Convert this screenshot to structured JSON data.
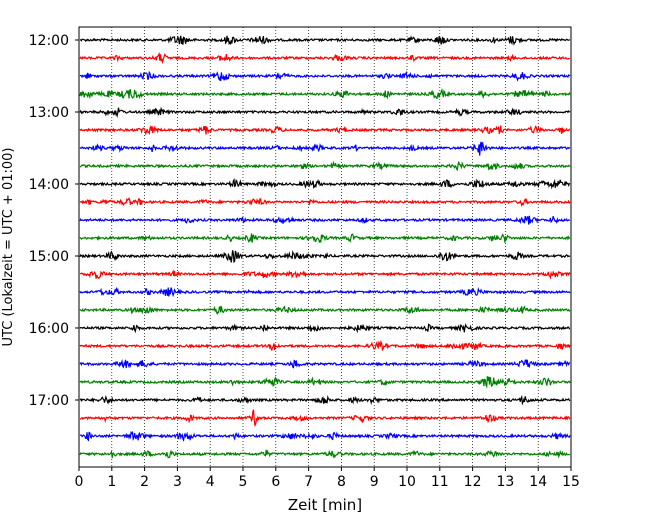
{
  "chart_data": {
    "type": "line",
    "title": "",
    "xlabel": "Zeit  [min]",
    "ylabel": "UTC (Lokalzeit = UTC + 01:00)",
    "xlim": [
      0,
      15
    ],
    "x_ticks": [
      0,
      1,
      2,
      3,
      4,
      5,
      6,
      7,
      8,
      9,
      10,
      11,
      12,
      13,
      14,
      15
    ],
    "x_tick_labels": [
      "0",
      "1",
      "2",
      "3",
      "4",
      "5",
      "6",
      "7",
      "8",
      "9",
      "10",
      "11",
      "12",
      "13",
      "14",
      "15"
    ],
    "y_tick_labels": [
      "12:00",
      "13:00",
      "14:00",
      "15:00",
      "16:00",
      "17:00"
    ],
    "grid": "vertical dotted",
    "trace_colors": [
      "#000000",
      "#ff0000",
      "#0000ff",
      "#008000"
    ],
    "series": [
      {
        "start": "12:00"
      },
      {
        "start": "12:15"
      },
      {
        "start": "12:30"
      },
      {
        "start": "12:45"
      },
      {
        "start": "13:00"
      },
      {
        "start": "13:15"
      },
      {
        "start": "13:30"
      },
      {
        "start": "13:45"
      },
      {
        "start": "14:00"
      },
      {
        "start": "14:15"
      },
      {
        "start": "14:30"
      },
      {
        "start": "14:45"
      },
      {
        "start": "15:00"
      },
      {
        "start": "15:15"
      },
      {
        "start": "15:30"
      },
      {
        "start": "15:45"
      },
      {
        "start": "16:00"
      },
      {
        "start": "16:15"
      },
      {
        "start": "16:30"
      },
      {
        "start": "16:45"
      },
      {
        "start": "17:00"
      },
      {
        "start": "17:15"
      },
      {
        "start": "17:30"
      },
      {
        "start": "17:45"
      }
    ]
  }
}
